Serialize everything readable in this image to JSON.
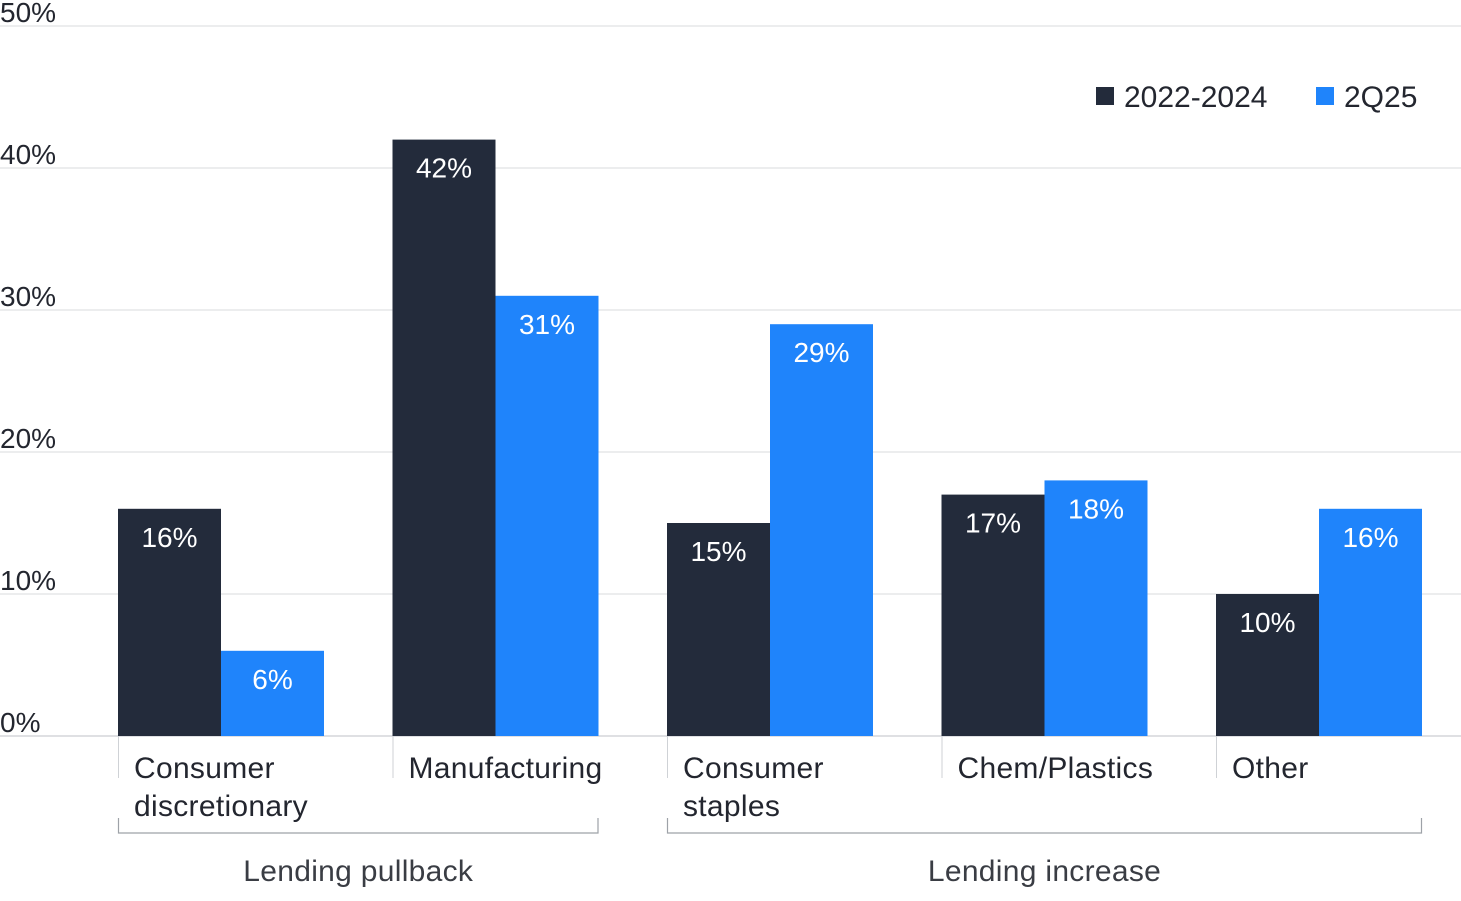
{
  "chart_data": {
    "type": "bar",
    "categories": [
      "Consumer discretionary",
      "Manufacturing",
      "Consumer staples",
      "Chem/Plastics",
      "Other"
    ],
    "category_lines": [
      [
        "Consumer",
        "discretionary"
      ],
      [
        "Manufacturing"
      ],
      [
        "Consumer",
        "staples"
      ],
      [
        "Chem/Plastics"
      ],
      [
        "Other"
      ]
    ],
    "series": [
      {
        "name": "2022-2024",
        "color": "#232b3b",
        "values": [
          16,
          42,
          15,
          17,
          10
        ],
        "labels": [
          "16%",
          "42%",
          "15%",
          "17%",
          "10%"
        ]
      },
      {
        "name": "2Q25",
        "color": "#1f84fb",
        "values": [
          6,
          31,
          29,
          18,
          16
        ],
        "labels": [
          "6%",
          "31%",
          "29%",
          "18%",
          "16%"
        ]
      }
    ],
    "y_ticks": [
      0,
      10,
      20,
      30,
      40,
      50
    ],
    "y_tick_labels": [
      "0%",
      "10%",
      "20%",
      "30%",
      "40%",
      "50%"
    ],
    "ylim": [
      0,
      50
    ],
    "grid": true,
    "legend_position": "top-right",
    "groups": [
      {
        "label": "Lending pullback",
        "categories": [
          "Consumer discretionary",
          "Manufacturing"
        ]
      },
      {
        "label": "Lending increase",
        "categories": [
          "Consumer staples",
          "Chem/Plastics",
          "Other"
        ]
      }
    ],
    "title": "",
    "xlabel": "",
    "ylabel": ""
  }
}
